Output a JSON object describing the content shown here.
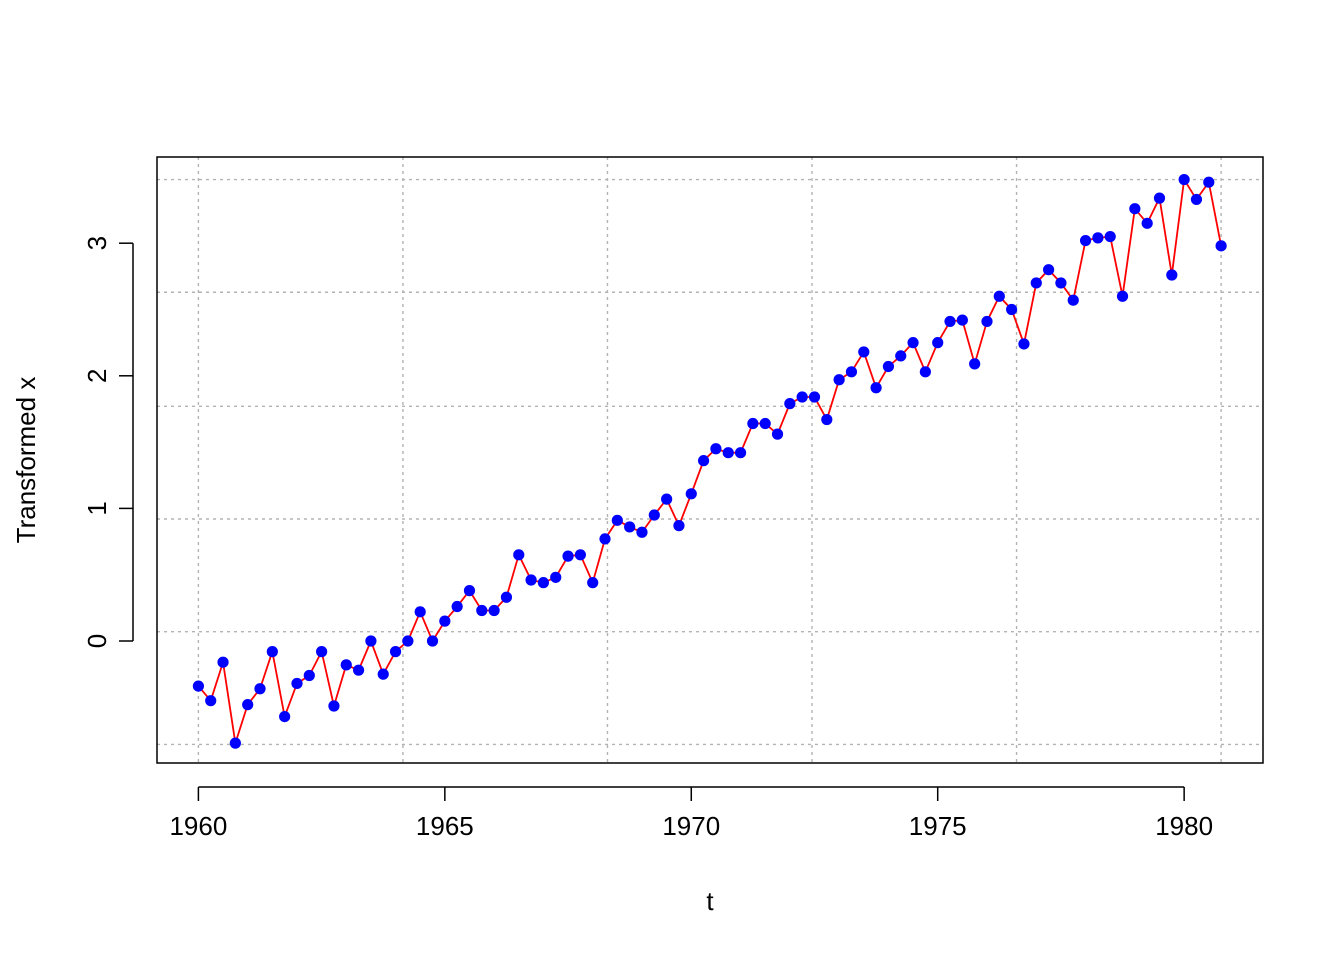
{
  "chart_data": {
    "type": "line",
    "title": "",
    "xlabel": "t",
    "ylabel": "Transformed x",
    "xlim": [
      1959.16,
      1981.6
    ],
    "ylim": [
      -0.92,
      3.65
    ],
    "x_ticks": [
      "1960",
      "1965",
      "1970",
      "1975",
      "1980"
    ],
    "y_ticks": [
      "0",
      "1",
      "2",
      "3"
    ],
    "grid": true,
    "grid_x_positions": [
      1960.0,
      1964.15,
      1968.3,
      1972.45,
      1976.6,
      1980.75
    ],
    "grid_y_positions": [
      -0.78,
      0.07,
      0.92,
      1.77,
      2.63,
      3.48
    ],
    "line_color": "#ff0000",
    "point_color": "#0000ff",
    "series": [
      {
        "x_start": 1960.0,
        "x_step": 0.25,
        "values": [
          -0.34,
          -0.45,
          -0.16,
          -0.77,
          -0.48,
          -0.36,
          -0.08,
          -0.57,
          -0.32,
          -0.26,
          -0.08,
          -0.49,
          -0.18,
          -0.22,
          0.0,
          -0.25,
          -0.08,
          0.0,
          0.22,
          0.0,
          0.15,
          0.26,
          0.38,
          0.23,
          0.23,
          0.33,
          0.65,
          0.46,
          0.44,
          0.48,
          0.64,
          0.65,
          0.44,
          0.77,
          0.91,
          0.86,
          0.82,
          0.95,
          1.07,
          0.87,
          1.11,
          1.36,
          1.45,
          1.42,
          1.42,
          1.64,
          1.64,
          1.56,
          1.79,
          1.84,
          1.84,
          1.67,
          1.97,
          2.03,
          2.18,
          1.91,
          2.07,
          2.15,
          2.25,
          2.03,
          2.25,
          2.41,
          2.42,
          2.09,
          2.41,
          2.6,
          2.5,
          2.24,
          2.7,
          2.8,
          2.7,
          2.57,
          3.02,
          3.04,
          3.05,
          2.6,
          3.26,
          3.15,
          3.34,
          2.76,
          3.48,
          3.33,
          3.46,
          2.98
        ]
      }
    ]
  }
}
